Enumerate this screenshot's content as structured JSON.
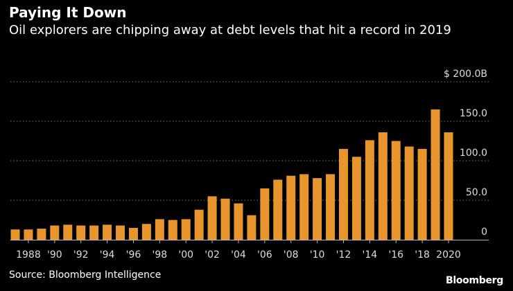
{
  "title": "Paying It Down",
  "subtitle": "Oil explorers are chipping away at debt levels that hit a record in 2019",
  "source": "Source: Bloomberg Intelligence",
  "logo": "Bloomberg",
  "colors": {
    "bar": "#E8952E",
    "background": "#000000",
    "grid": "#777777"
  },
  "chart_data": {
    "type": "bar",
    "title": "Paying It Down",
    "xlabel": "",
    "ylabel": "",
    "ylim": [
      0,
      200
    ],
    "unit": "$ billions",
    "yticks": [
      0,
      50,
      100,
      150,
      200
    ],
    "ytick_labels": [
      "0",
      "50.0",
      "100.0",
      "150.0",
      "$ 200.0B"
    ],
    "categories": [
      1987,
      1988,
      1989,
      1990,
      1991,
      1992,
      1993,
      1994,
      1995,
      1996,
      1997,
      1998,
      1999,
      2000,
      2001,
      2002,
      2003,
      2004,
      2005,
      2006,
      2007,
      2008,
      2009,
      2010,
      2011,
      2012,
      2013,
      2014,
      2015,
      2016,
      2017,
      2018,
      2019,
      2020
    ],
    "values": [
      13,
      13,
      14,
      18,
      19,
      18,
      18,
      19,
      18,
      15,
      20,
      26,
      25,
      26,
      38,
      55,
      52,
      46,
      31,
      65,
      76,
      81,
      83,
      78,
      83,
      115,
      105,
      126,
      136,
      125,
      118,
      115,
      165,
      136
    ],
    "xtick_years": [
      1988,
      1990,
      1992,
      1994,
      1996,
      1998,
      2000,
      2002,
      2004,
      2006,
      2008,
      2010,
      2012,
      2014,
      2016,
      2018,
      2020
    ],
    "xtick_labels": [
      "1988",
      "'90",
      "'92",
      "'94",
      "'96",
      "'98",
      "'00",
      "'02",
      "'04",
      "'06",
      "'08",
      "'10",
      "'12",
      "'14",
      "'16",
      "'18",
      "2020"
    ],
    "grid": true,
    "legend": "none"
  }
}
